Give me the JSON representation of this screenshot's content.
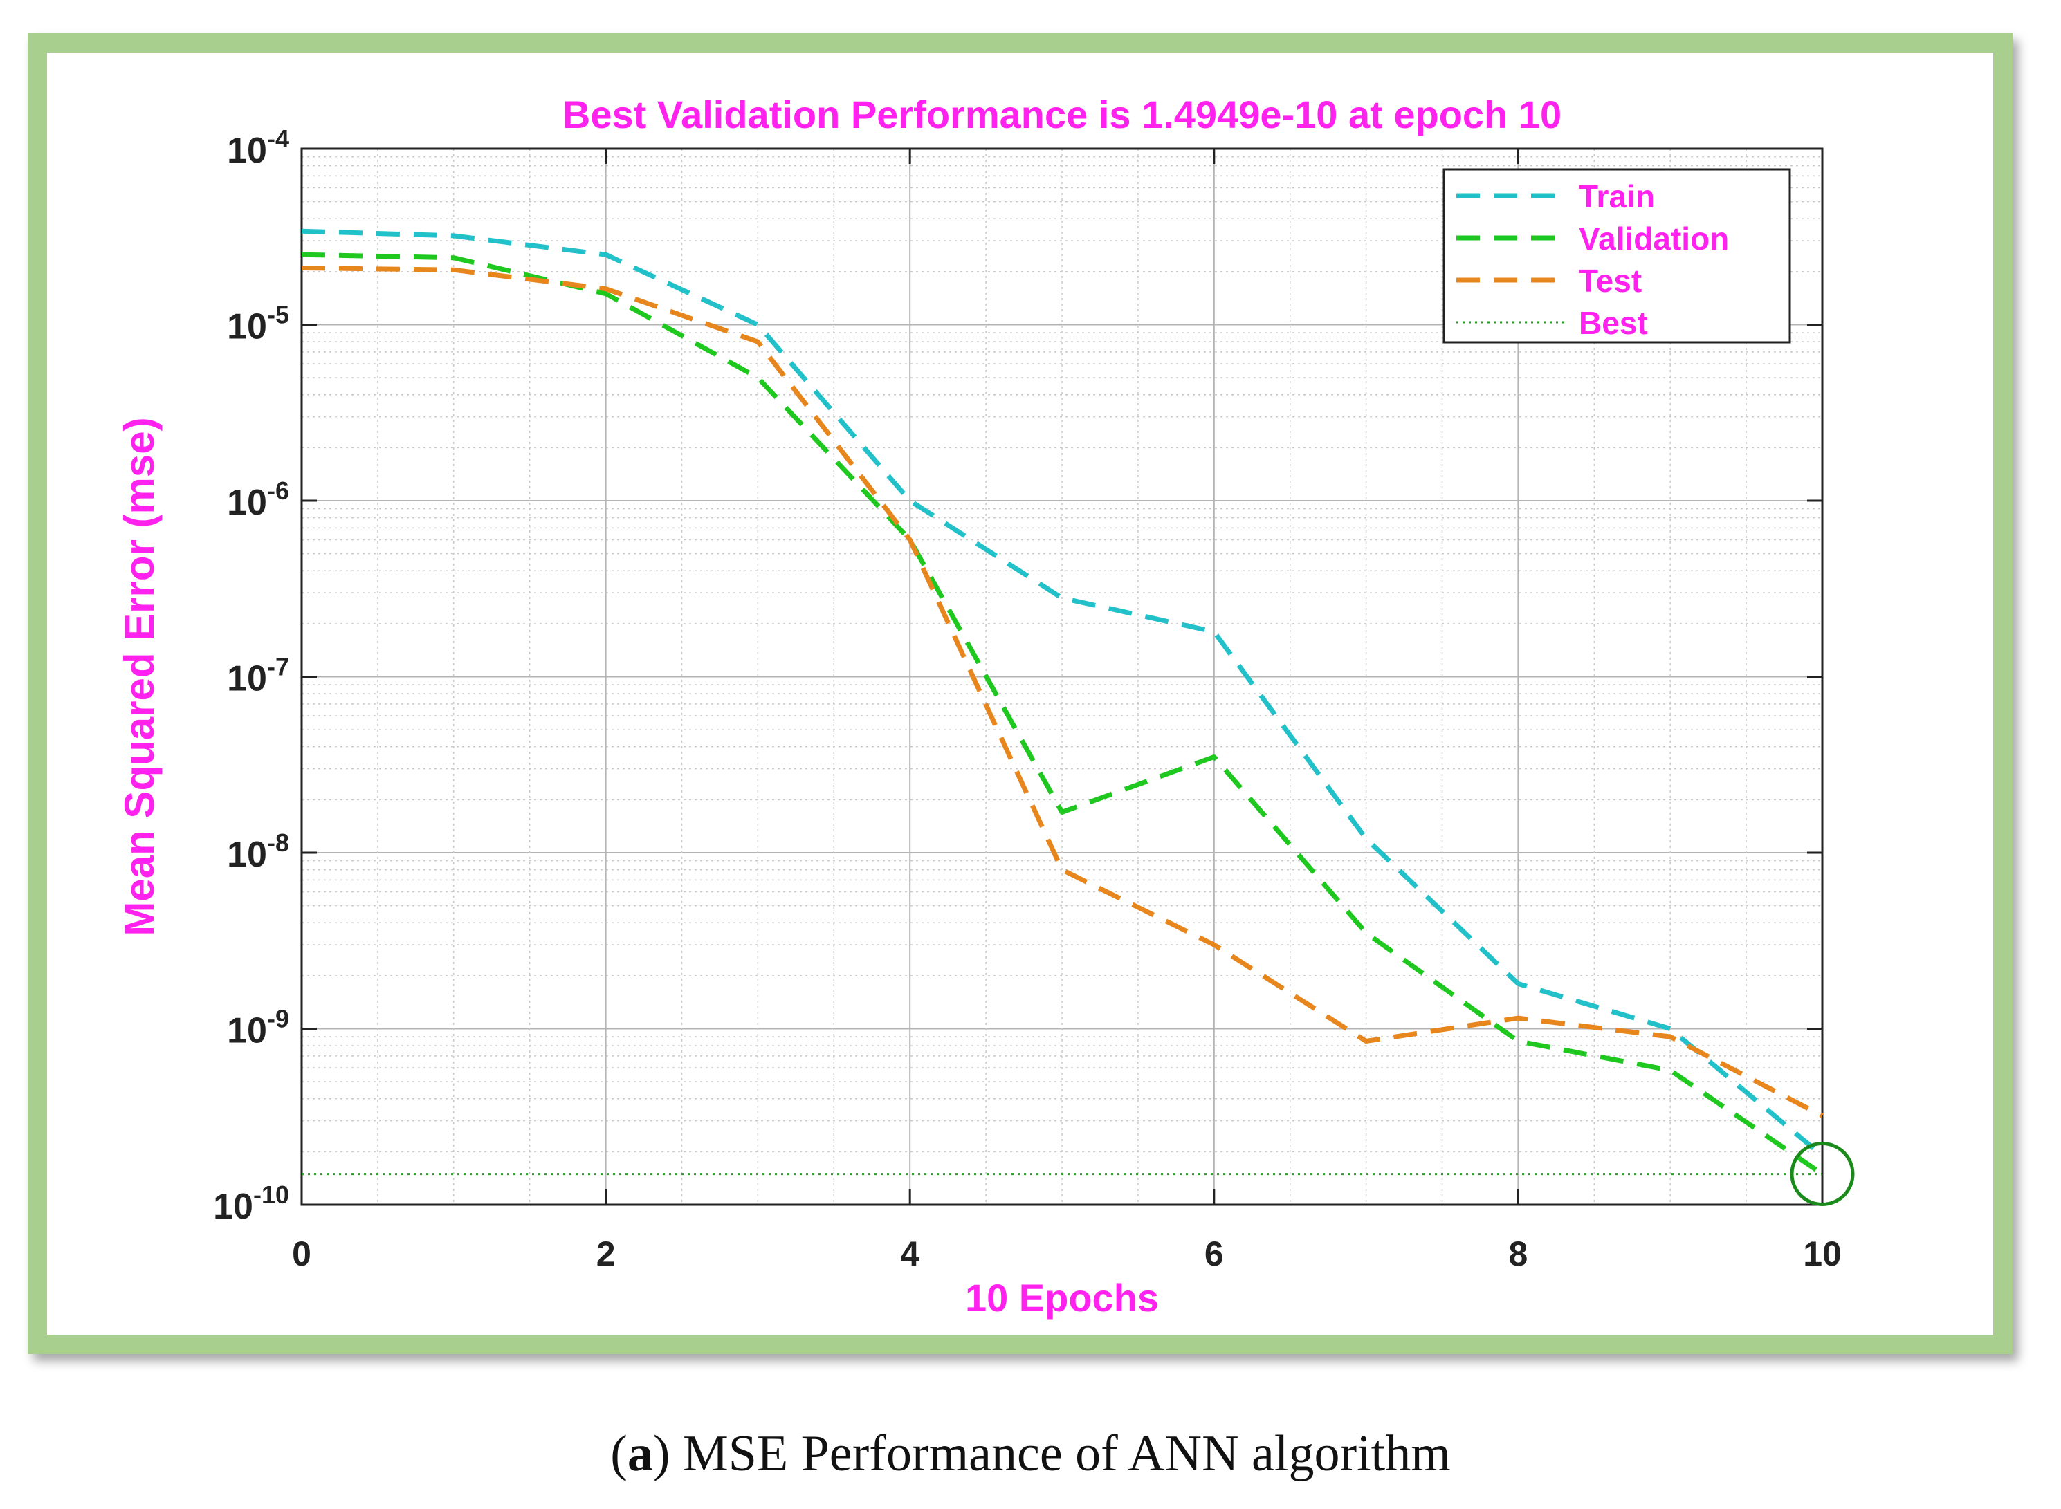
{
  "chart_data": {
    "type": "line",
    "title": "Best Validation Performance is 1.4949e-10 at epoch 10",
    "xlabel": "10 Epochs",
    "ylabel": "Mean Squared Error  (mse)",
    "xlim": [
      0,
      10
    ],
    "ylim": [
      1e-10,
      0.0001
    ],
    "yscale": "log",
    "grid": true,
    "legend_position": "top-right",
    "x_ticks": [
      "0",
      "2",
      "4",
      "6",
      "8",
      "10"
    ],
    "y_ticks": [
      {
        "base": "10",
        "exp": "-4"
      },
      {
        "base": "10",
        "exp": "-5"
      },
      {
        "base": "10",
        "exp": "-6"
      },
      {
        "base": "10",
        "exp": "-7"
      },
      {
        "base": "10",
        "exp": "-8"
      },
      {
        "base": "10",
        "exp": "-9"
      },
      {
        "base": "10",
        "exp": "-10"
      }
    ],
    "x": [
      0,
      1,
      2,
      3,
      4,
      5,
      6,
      7,
      8,
      9,
      10
    ],
    "series": [
      {
        "name": "Train",
        "color": "#22c0c8",
        "style": "dashed",
        "values": [
          3.4e-05,
          3.2e-05,
          2.5e-05,
          1e-05,
          1e-06,
          2.8e-07,
          1.8e-07,
          1.2e-08,
          1.8e-09,
          1e-09,
          1.9e-10
        ]
      },
      {
        "name": "Validation",
        "color": "#1ec81e",
        "style": "dashed",
        "values": [
          2.5e-05,
          2.4e-05,
          1.5e-05,
          5e-06,
          6e-07,
          1.7e-08,
          3.5e-08,
          3.5e-09,
          8.5e-10,
          5.8e-10,
          1.4949e-10
        ]
      },
      {
        "name": "Test",
        "color": "#e8861e",
        "style": "dashed",
        "values": [
          2.1e-05,
          2.05e-05,
          1.6e-05,
          8e-06,
          6e-07,
          8e-09,
          3e-09,
          8.5e-10,
          1.15e-09,
          9e-10,
          3.2e-10
        ]
      },
      {
        "name": "Best",
        "color": "#2a9a2a",
        "style": "dotted",
        "values": [
          1.4949e-10,
          1.4949e-10,
          1.4949e-10,
          1.4949e-10,
          1.4949e-10,
          1.4949e-10,
          1.4949e-10,
          1.4949e-10,
          1.4949e-10,
          1.4949e-10,
          1.4949e-10
        ]
      }
    ],
    "best_point": {
      "epoch": 10,
      "value": 1.4949e-10,
      "color": "#1a8a1a"
    },
    "colors": {
      "title": "#ff22ee",
      "axis_label": "#ff22ee",
      "legend_text": "#ff22ee",
      "frame": "#a9cf8e"
    }
  },
  "caption": {
    "letter": "a",
    "text": "MSE Performance of ANN algorithm"
  }
}
